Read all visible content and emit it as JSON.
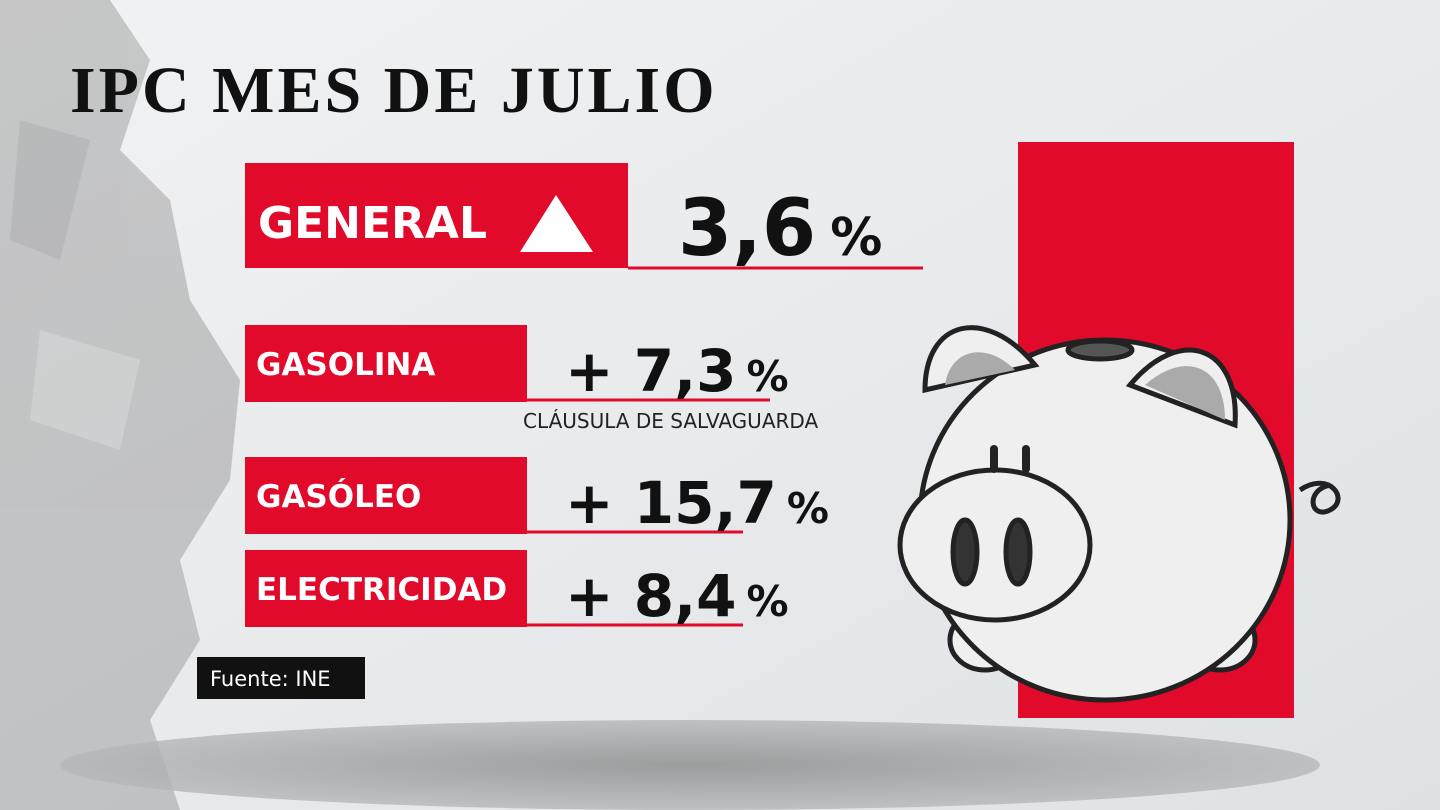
{
  "header": {
    "title": "IPC MES DE JULIO"
  },
  "main": {
    "label": "GENERAL",
    "value": "3,6",
    "unit": "%"
  },
  "items": [
    {
      "label": "GASOLINA",
      "value": "+ 7,3",
      "unit": "%",
      "note": "CLÁUSULA DE SALVAGUARDA"
    },
    {
      "label": "GASÓLEO",
      "value": "+ 15,7",
      "unit": "%"
    },
    {
      "label": "ELECTRICIDAD",
      "value": "+ 8,4",
      "unit": "%"
    }
  ],
  "source": "Fuente: INE"
}
